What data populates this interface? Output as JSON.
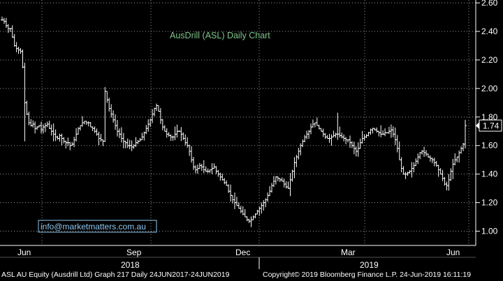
{
  "chart_data": {
    "type": "ohlc",
    "title": "AusDrill (ASL) Daily Chart",
    "watermark": "info@marketmatters.com.au",
    "last_price": "1.74",
    "ylim": [
      0.9,
      2.62
    ],
    "y_ticks": [
      "1.00",
      "1.20",
      "1.40",
      "1.60",
      "1.80",
      "2.00",
      "2.20",
      "2.40",
      "2.60"
    ],
    "x_month_labels": [
      "Jun",
      "Sep",
      "Dec",
      "Mar",
      "Jun"
    ],
    "x_year_labels": [
      "2018",
      "2019"
    ],
    "colors": {
      "background": "#000000",
      "bars": "#ffffff",
      "title": "#7ec88a",
      "watermark": "#8fc8f0",
      "grid": "#9a9a9a",
      "axis_text": "#ffffff"
    },
    "series": [
      {
        "values": [
          2.48,
          2.47,
          2.44,
          2.42,
          2.42,
          2.36,
          2.3,
          2.28,
          2.27,
          2.26,
          2.15,
          1.9,
          1.82,
          1.76,
          1.74,
          1.75,
          1.72,
          1.73,
          1.74,
          1.71,
          1.73,
          1.74,
          1.75,
          1.72,
          1.7,
          1.68,
          1.66,
          1.65,
          1.67,
          1.65,
          1.63,
          1.62,
          1.62,
          1.6,
          1.61,
          1.64,
          1.68,
          1.72,
          1.74,
          1.76,
          1.77,
          1.76,
          1.76,
          1.73,
          1.72,
          1.7,
          1.68,
          1.65,
          1.64,
          1.63,
          1.98,
          1.92,
          1.86,
          1.82,
          1.78,
          1.74,
          1.7,
          1.68,
          1.65,
          1.63,
          1.62,
          1.6,
          1.6,
          1.59,
          1.6,
          1.62,
          1.63,
          1.64,
          1.66,
          1.69,
          1.72,
          1.75,
          1.78,
          1.82,
          1.86,
          1.88,
          1.84,
          1.78,
          1.73,
          1.7,
          1.68,
          1.67,
          1.66,
          1.66,
          1.68,
          1.7,
          1.7,
          1.68,
          1.65,
          1.62,
          1.6,
          1.56,
          1.5,
          1.45,
          1.43,
          1.44,
          1.46,
          1.45,
          1.43,
          1.42,
          1.42,
          1.43,
          1.44,
          1.45,
          1.42,
          1.4,
          1.38,
          1.36,
          1.34,
          1.32,
          1.28,
          1.25,
          1.22,
          1.2,
          1.18,
          1.16,
          1.14,
          1.12,
          1.1,
          1.08,
          1.07,
          1.08,
          1.1,
          1.12,
          1.14,
          1.16,
          1.18,
          1.2,
          1.22,
          1.25,
          1.28,
          1.32,
          1.35,
          1.38,
          1.37,
          1.36,
          1.35,
          1.33,
          1.31,
          1.3,
          1.36,
          1.42,
          1.48,
          1.52,
          1.56,
          1.6,
          1.63,
          1.66,
          1.68,
          1.7,
          1.73,
          1.75,
          1.76,
          1.74,
          1.72,
          1.7,
          1.68,
          1.66,
          1.65,
          1.65,
          1.66,
          1.67,
          1.68,
          1.68,
          1.67,
          1.66,
          1.65,
          1.64,
          1.64,
          1.62,
          1.6,
          1.58,
          1.56,
          1.58,
          1.62,
          1.65,
          1.66,
          1.67,
          1.69,
          1.71,
          1.72,
          1.71,
          1.7,
          1.69,
          1.68,
          1.68,
          1.69,
          1.69,
          1.7,
          1.71,
          1.68,
          1.64,
          1.58,
          1.5,
          1.44,
          1.4,
          1.4,
          1.41,
          1.42,
          1.44,
          1.46,
          1.49,
          1.52,
          1.55,
          1.56,
          1.55,
          1.54,
          1.52,
          1.51,
          1.5,
          1.48,
          1.46,
          1.43,
          1.4,
          1.37,
          1.33,
          1.32,
          1.36,
          1.42,
          1.47,
          1.5,
          1.52,
          1.55,
          1.58,
          1.61,
          1.74
        ]
      }
    ]
  },
  "footer": {
    "left": "ASL AU Equity (Ausdrill Ltd) Graph 217  Daily 24JUN2017-24JUN2019",
    "right": "Copyright© 2019 Bloomberg Finance L.P.     24-Jun-2019 16:11:19"
  }
}
